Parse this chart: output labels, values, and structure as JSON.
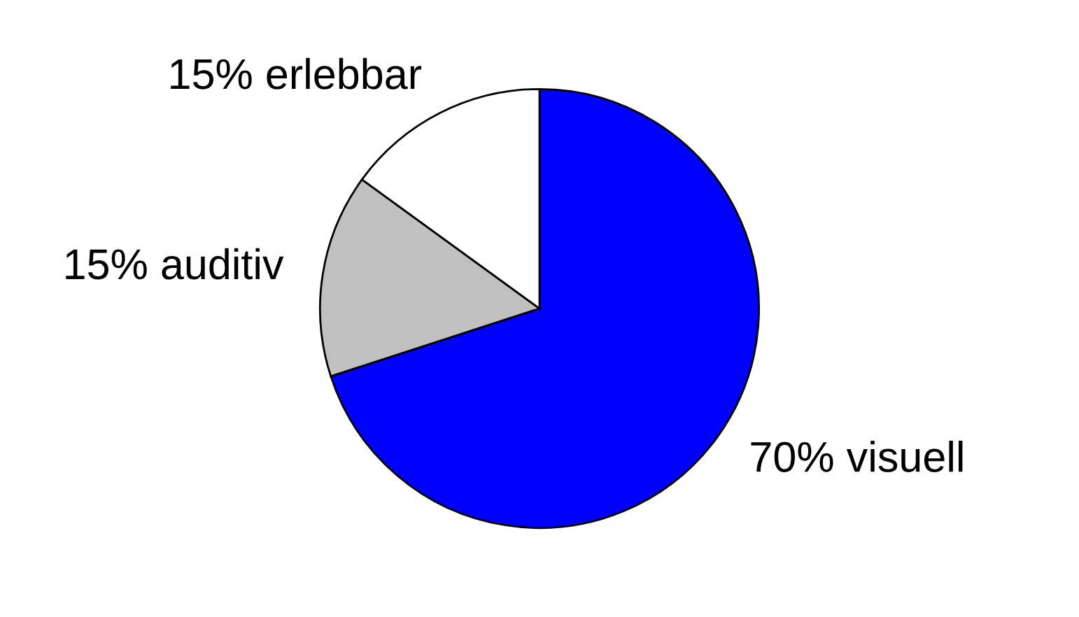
{
  "chart_data": {
    "type": "pie",
    "categories": [
      "70% visuell",
      "15% auditiv",
      "15% erlebbar"
    ],
    "values": [
      70,
      15,
      15
    ],
    "colors": [
      "#0000ff",
      "#c0c0c0",
      "#ffffff"
    ]
  }
}
